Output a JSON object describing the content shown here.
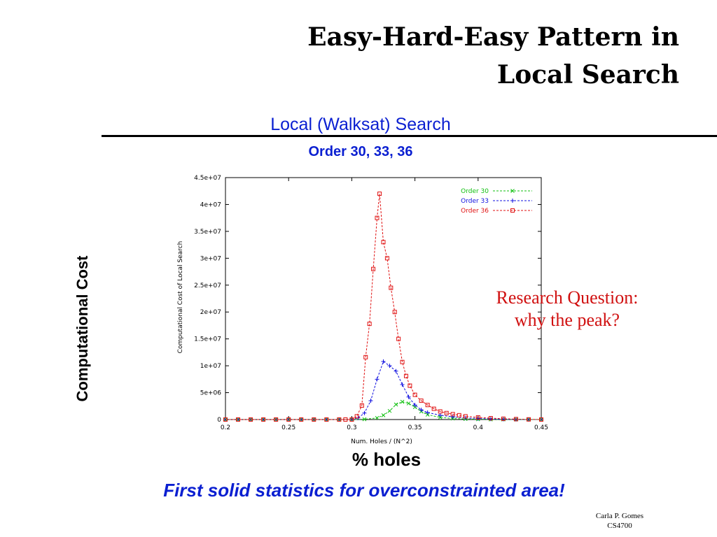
{
  "slide": {
    "title_line1": "Easy-Hard-Easy Pattern in",
    "title_line2": "Local Search",
    "chart_heading": "Local (Walksat) Search",
    "chart_subheading": "Order 30, 33, 36",
    "y_axis_caption": "Computational Cost",
    "x_axis_caption": "% holes",
    "caption": "First solid statistics for overconstrainted area!",
    "question_line1": "Research Question:",
    "question_line2": "why the peak?",
    "footer_line1": "Carla P. Gomes",
    "footer_line2": "CS4700"
  },
  "colors": {
    "heading_blue": "#0a1fd1",
    "question_red": "#d01010",
    "order30": "#10c010",
    "order33": "#1010e0",
    "order36": "#e01010"
  },
  "chart_data": {
    "type": "line",
    "xlabel": "Num. Holes / (N^2)",
    "ylabel": "Computational Cost of Local Search",
    "xlim": [
      0.2,
      0.45
    ],
    "ylim": [
      0,
      45000000
    ],
    "x_ticks": [
      0.2,
      0.25,
      0.3,
      0.35,
      0.4,
      0.45
    ],
    "x_tick_labels": [
      "0.2",
      "0.25",
      "0.3",
      "0.35",
      "0.4",
      "0.45"
    ],
    "y_ticks": [
      0,
      5000000,
      10000000,
      15000000,
      20000000,
      25000000,
      30000000,
      35000000,
      40000000,
      45000000
    ],
    "y_tick_labels": [
      "0",
      "5e+06",
      "1e+07",
      "1.5e+07",
      "2e+07",
      "2.5e+07",
      "3e+07",
      "3.5e+07",
      "4e+07",
      "4.5e+07"
    ],
    "legend_position": "top-right",
    "grid": false,
    "series": [
      {
        "name": "Order 30",
        "color": "#10c010",
        "marker": "x",
        "x": [
          0.2,
          0.21,
          0.22,
          0.23,
          0.24,
          0.25,
          0.26,
          0.27,
          0.28,
          0.29,
          0.3,
          0.31,
          0.32,
          0.325,
          0.33,
          0.335,
          0.34,
          0.345,
          0.35,
          0.355,
          0.36,
          0.37,
          0.38,
          0.39,
          0.4,
          0.41,
          0.42,
          0.43,
          0.44,
          0.45
        ],
        "y": [
          0,
          0,
          0,
          0,
          0,
          0,
          0,
          0,
          0,
          0,
          0,
          50000,
          300000,
          800000,
          1600000,
          2800000,
          3300000,
          3000000,
          2300000,
          1500000,
          900000,
          400000,
          200000,
          100000,
          50000,
          20000,
          10000,
          0,
          0,
          0
        ]
      },
      {
        "name": "Order 33",
        "color": "#1010e0",
        "marker": "+",
        "x": [
          0.2,
          0.21,
          0.22,
          0.23,
          0.24,
          0.25,
          0.26,
          0.27,
          0.28,
          0.29,
          0.3,
          0.305,
          0.31,
          0.315,
          0.32,
          0.325,
          0.33,
          0.335,
          0.34,
          0.345,
          0.35,
          0.355,
          0.36,
          0.37,
          0.38,
          0.39,
          0.4,
          0.41,
          0.42,
          0.43,
          0.44,
          0.45
        ],
        "y": [
          0,
          0,
          0,
          0,
          0,
          0,
          0,
          0,
          0,
          0,
          0,
          300000,
          1200000,
          3500000,
          7500000,
          10800000,
          10000000,
          9000000,
          6500000,
          4200000,
          2700000,
          1800000,
          1300000,
          800000,
          500000,
          300000,
          200000,
          100000,
          50000,
          20000,
          0,
          0
        ]
      },
      {
        "name": "Order 36",
        "color": "#e01010",
        "marker": "square",
        "x": [
          0.2,
          0.21,
          0.22,
          0.23,
          0.24,
          0.25,
          0.26,
          0.27,
          0.28,
          0.29,
          0.295,
          0.3,
          0.304,
          0.308,
          0.311,
          0.314,
          0.317,
          0.32,
          0.322,
          0.325,
          0.328,
          0.331,
          0.334,
          0.337,
          0.34,
          0.343,
          0.346,
          0.35,
          0.355,
          0.36,
          0.365,
          0.37,
          0.375,
          0.38,
          0.385,
          0.39,
          0.4,
          0.41,
          0.42,
          0.43,
          0.44,
          0.45
        ],
        "y": [
          0,
          0,
          0,
          0,
          0,
          0,
          0,
          0,
          0,
          0,
          0,
          0,
          600000,
          2600000,
          11600000,
          17800000,
          28000000,
          37500000,
          42000000,
          33000000,
          30000000,
          24500000,
          20000000,
          15000000,
          10700000,
          8100000,
          6300000,
          4600000,
          3500000,
          2700000,
          2000000,
          1500000,
          1200000,
          1000000,
          800000,
          600000,
          400000,
          250000,
          150000,
          80000,
          30000,
          0
        ]
      }
    ]
  }
}
